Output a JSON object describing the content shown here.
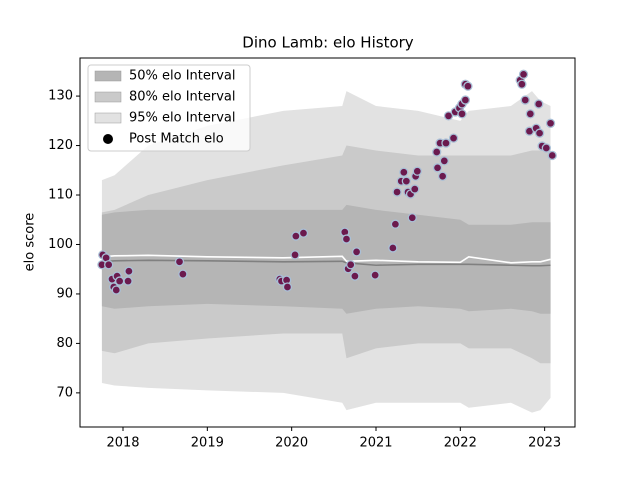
{
  "chart_data": {
    "type": "band-scatter",
    "title": "Dino Lamb: elo History",
    "y_label": "elo score",
    "xlim": [
      2017.49,
      2023.36
    ],
    "xticks": [
      2018,
      2019,
      2020,
      2021,
      2022,
      2023
    ],
    "ylim": [
      63.1,
      137.7
    ],
    "yticks": [
      70,
      80,
      90,
      100,
      110,
      120,
      130
    ],
    "legend": "upper left",
    "band_x": [
      2017.75,
      2017.9,
      2018.3,
      2019,
      2019.9,
      2020.6,
      2020.65,
      2021.0,
      2021.5,
      2022.0,
      2022.1,
      2022.6,
      2022.85,
      2022.95,
      2023.07
    ],
    "bands": [
      {
        "name": "95% elo Interval",
        "color": "#e2e2e2",
        "upper": [
          113,
          114,
          120,
          124,
          127,
          128,
          131,
          128,
          127,
          125,
          127,
          128,
          131,
          129,
          128
        ],
        "lower": [
          72,
          71.5,
          71,
          70.5,
          70,
          68,
          66.5,
          68,
          68,
          68,
          67,
          68,
          66,
          66.5,
          69
        ]
      },
      {
        "name": "80% elo Interval",
        "color": "#cacaca",
        "upper": [
          106.5,
          107,
          110,
          113,
          116,
          118,
          120,
          119,
          118,
          118,
          118,
          118,
          119,
          119,
          119
        ],
        "lower": [
          78.5,
          78,
          80,
          81,
          82,
          82,
          77,
          79,
          80,
          80,
          79,
          79,
          77,
          76,
          76
        ]
      },
      {
        "name": "50% elo Interval",
        "color": "#b5b5b5",
        "upper": [
          106,
          106.5,
          107,
          107,
          107,
          107,
          108,
          107,
          106,
          105,
          104,
          104,
          104.5,
          104.5,
          104.5
        ],
        "lower": [
          87.5,
          87,
          87.5,
          88,
          87.5,
          87,
          86,
          87,
          87.5,
          87,
          86.5,
          87,
          86.5,
          86,
          86
        ]
      }
    ],
    "lines": [
      {
        "color": "#808080",
        "values": [
          96.5,
          96.7,
          96.8,
          96.7,
          96.5,
          96.6,
          96.3,
          95.8,
          96,
          96,
          96,
          95.8,
          95.7,
          95.7,
          95.8
        ]
      },
      {
        "color": "#ffffff",
        "values": [
          97.5,
          97.7,
          97.8,
          97.5,
          97.3,
          97.6,
          96.6,
          96.8,
          96.5,
          96.4,
          97.5,
          96.3,
          96.5,
          96.5,
          97
        ]
      }
    ],
    "points": {
      "name": "Post Match elo",
      "color": "#6b1a4e",
      "edge": "#a9bfd6",
      "x": [
        2017.76,
        2017.8,
        2017.75,
        2017.83,
        2017.87,
        2017.89,
        2017.92,
        2017.93,
        2017.96,
        2018.07,
        2018.06,
        2018.67,
        2018.71,
        2019.86,
        2019.88,
        2019.94,
        2019.95,
        2020.04,
        2020.05,
        2020.14,
        2020.63,
        2020.65,
        2020.67,
        2020.7,
        2020.75,
        2020.77,
        2020.99,
        2021.2,
        2021.23,
        2021.25,
        2021.3,
        2021.33,
        2021.36,
        2021.38,
        2021.41,
        2021.43,
        2021.46,
        2021.47,
        2021.49,
        2021.72,
        2021.73,
        2021.76,
        2021.79,
        2021.81,
        2021.83,
        2021.86,
        2021.92,
        2021.94,
        2021.99,
        2022.02,
        2022.02,
        2022.06,
        2022.06,
        2022.09,
        2022.71,
        2022.73,
        2022.75,
        2022.77,
        2022.82,
        2022.83,
        2022.9,
        2022.93,
        2022.94,
        2022.97,
        2023.02,
        2023.07,
        2023.09
      ],
      "y": [
        97.9,
        97.3,
        95.9,
        95.9,
        93.0,
        91.4,
        90.8,
        93.6,
        92.6,
        94.6,
        92.6,
        96.5,
        94.0,
        93.0,
        92.6,
        92.8,
        91.4,
        97.9,
        101.7,
        102.3,
        102.5,
        101.1,
        95.1,
        95.9,
        93.6,
        98.5,
        93.8,
        99.3,
        104.1,
        110.6,
        112.8,
        114.6,
        112.8,
        110.6,
        110.2,
        105.4,
        111.2,
        113.8,
        114.8,
        118.7,
        115.5,
        120.5,
        113.8,
        116.9,
        120.5,
        126.0,
        121.5,
        126.8,
        127.6,
        126.4,
        128.4,
        129.2,
        132.4,
        132.0,
        133.2,
        132.4,
        134.4,
        129.2,
        122.9,
        126.4,
        123.5,
        128.4,
        122.5,
        119.9,
        119.5,
        124.5,
        118.0
      ]
    }
  }
}
